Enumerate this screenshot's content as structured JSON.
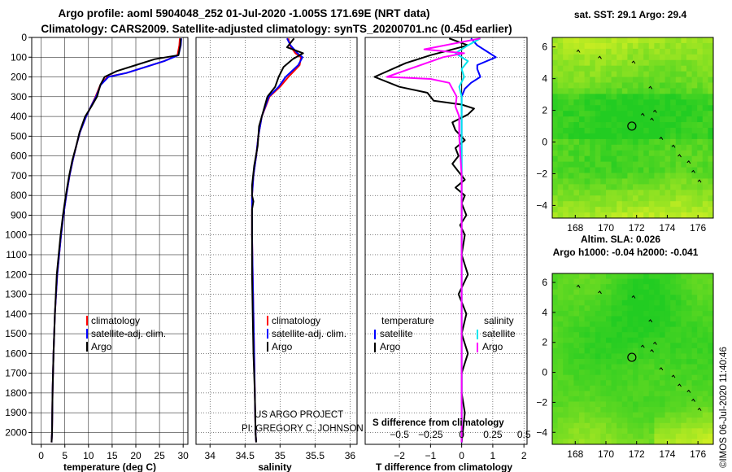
{
  "header": {
    "title_line1": "Argo profile: aoml 5904048_252 01-Jul-2020 -1.005S 171.69E (NRT data)",
    "title_line2": "Climatology: CARS2009. Satellite-adjusted climatology: synTS_20200701.nc (0.45d earlier)"
  },
  "footer": {
    "project_line1": "US ARGO PROJECT",
    "project_line2": "PI: GREGORY C. JOHNSON",
    "credit": "©IMOS 06-Jul-2020 11:40:46"
  },
  "colors": {
    "climatology": "#ff0000",
    "satellite": "#0000ff",
    "argo": "#000000",
    "sal_satellite": "#00e5ee",
    "sal_argo": "#ff00ff",
    "map_green": "#22cc22",
    "map_yellow": "#ccee22"
  },
  "chart_data": [
    {
      "id": "temperature",
      "type": "line",
      "xlabel": "temperature (deg C)",
      "ylabel": "",
      "xlim": [
        -2,
        31
      ],
      "ylim": [
        2060,
        0
      ],
      "xticks": [
        0,
        5,
        10,
        15,
        20,
        25,
        30
      ],
      "yticks": [
        0,
        100,
        200,
        300,
        400,
        500,
        600,
        700,
        800,
        900,
        1000,
        1100,
        1200,
        1300,
        1400,
        1500,
        1600,
        1700,
        1800,
        1900,
        2000
      ],
      "legend": {
        "position": "lower-center",
        "entries": [
          "climatology",
          "satellite-adj. clim.",
          "Argo"
        ]
      },
      "series": [
        {
          "name": "climatology",
          "color": "#ff0000",
          "x": [
            29.3,
            29.2,
            28.8,
            26,
            22,
            18,
            14,
            12.5,
            11.5,
            10.5,
            9.5,
            8.2,
            7.4,
            6.7,
            6.0,
            5.3,
            4.7,
            4.2,
            3.4,
            2.9,
            2.6,
            2.4,
            2.3,
            2.2
          ],
          "y": [
            5,
            40,
            90,
            120,
            150,
            180,
            200,
            240,
            300,
            350,
            400,
            480,
            550,
            620,
            700,
            800,
            900,
            1000,
            1200,
            1400,
            1600,
            1800,
            2000,
            2050
          ]
        },
        {
          "name": "satellite-adj. clim.",
          "color": "#0000ff",
          "x": [
            29.6,
            29.5,
            29.0,
            26,
            22,
            18,
            14.2,
            12.6,
            11.6,
            10.5,
            9.5,
            8.2,
            7.4,
            6.7,
            6.0,
            5.3,
            4.7,
            4.2,
            3.4,
            2.9,
            2.6,
            2.4,
            2.3,
            2.2
          ],
          "y": [
            5,
            40,
            90,
            120,
            150,
            180,
            200,
            240,
            300,
            350,
            400,
            480,
            550,
            620,
            700,
            800,
            900,
            1000,
            1200,
            1400,
            1600,
            1800,
            2000,
            2050
          ]
        },
        {
          "name": "Argo",
          "color": "#000000",
          "x": [
            29.5,
            29.4,
            29.0,
            24,
            20,
            16,
            13.4,
            12.5,
            11.8,
            10.6,
            9.3,
            8.1,
            7.4,
            6.6,
            5.9,
            5.2,
            4.6,
            4.1,
            3.3,
            2.9,
            2.6,
            2.4,
            2.3,
            2.2
          ],
          "y": [
            5,
            40,
            90,
            110,
            140,
            170,
            200,
            240,
            300,
            350,
            400,
            480,
            550,
            620,
            700,
            800,
            900,
            1000,
            1200,
            1400,
            1600,
            1800,
            2000,
            2050
          ]
        }
      ]
    },
    {
      "id": "salinity",
      "type": "line",
      "xlabel": "salinity",
      "ylabel": "",
      "xlim": [
        33.8,
        36.1
      ],
      "ylim": [
        2060,
        0
      ],
      "xticks": [
        34,
        34.5,
        35,
        35.5,
        36
      ],
      "legend": {
        "position": "lower-center",
        "entries": [
          "climatology",
          "satellite-adj. clim.",
          "Argo"
        ]
      },
      "series": [
        {
          "name": "climatology",
          "color": "#ff0000",
          "x": [
            35.12,
            35.14,
            35.22,
            35.3,
            35.28,
            35.12,
            35.0,
            34.85,
            34.74,
            34.69,
            34.66,
            34.62,
            34.6,
            34.6,
            34.6,
            34.61,
            34.62,
            34.63,
            34.64,
            34.65,
            34.66
          ],
          "y": [
            5,
            40,
            80,
            100,
            140,
            200,
            250,
            300,
            400,
            500,
            600,
            700,
            800,
            900,
            1000,
            1200,
            1400,
            1600,
            1800,
            2000,
            2050
          ]
        },
        {
          "name": "satellite-adj. clim.",
          "color": "#0000ff",
          "x": [
            35.1,
            35.15,
            35.25,
            35.32,
            35.26,
            35.08,
            34.98,
            34.84,
            34.74,
            34.69,
            34.66,
            34.62,
            34.6,
            34.6,
            34.6,
            34.61,
            34.62,
            34.63,
            34.64,
            34.65,
            34.66
          ],
          "y": [
            5,
            40,
            80,
            100,
            140,
            200,
            250,
            300,
            400,
            500,
            600,
            700,
            800,
            900,
            1000,
            1200,
            1400,
            1600,
            1800,
            2000,
            2050
          ]
        },
        {
          "name": "Argo",
          "color": "#000000",
          "x": [
            35.2,
            35.1,
            35.33,
            35.18,
            35.05,
            34.98,
            34.93,
            34.82,
            34.74,
            34.7,
            34.68,
            34.63,
            34.6,
            34.6,
            34.62,
            34.6,
            34.6,
            34.6,
            34.6,
            34.61,
            34.62,
            34.64,
            34.65,
            34.66
          ],
          "y": [
            5,
            50,
            80,
            110,
            150,
            200,
            250,
            300,
            400,
            450,
            550,
            650,
            750,
            800,
            830,
            870,
            900,
            1000,
            1200,
            1400,
            1600,
            1800,
            2000,
            2050
          ]
        }
      ]
    },
    {
      "id": "difference",
      "type": "line",
      "xlabel": "T difference from climatology",
      "xlabel_top": "S difference from climatology",
      "ylabel": "",
      "xlim": [
        -3.1,
        2.1
      ],
      "ylim": [
        2060,
        0
      ],
      "xticks": [
        -2,
        -1,
        0,
        1,
        2
      ],
      "sticks": [
        -0.5,
        -0.25,
        0,
        0.25,
        0.5
      ],
      "slim": [
        -0.775,
        0.525
      ],
      "legend": {
        "position": "lower-center",
        "group_labels": [
          "temperature",
          "salinity"
        ],
        "entries": [
          "satellite",
          "Argo",
          "satellite",
          "Argo"
        ]
      },
      "series": [
        {
          "name": "T satellite",
          "color": "#0000ff",
          "x": [
            0.3,
            0.5,
            0.8,
            1.1,
            0.5,
            0.5,
            0.6,
            0.3,
            0.1,
            0,
            0,
            0,
            0,
            0,
            0,
            0,
            0,
            0,
            0,
            0,
            0
          ],
          "y": [
            5,
            40,
            70,
            100,
            140,
            160,
            200,
            230,
            260,
            300,
            400,
            500,
            700,
            900,
            1100,
            1300,
            1500,
            1700,
            1900,
            2000,
            2050
          ]
        },
        {
          "name": "T Argo",
          "color": "#000000",
          "x": [
            -0.4,
            0.2,
            -1.0,
            -1.8,
            -2.8,
            -2.0,
            -1.1,
            -0.9,
            0,
            0.4,
            0.2,
            -0.3,
            -0.2,
            0.1,
            -0.2,
            -0.1,
            -0.3,
            -0.1,
            0.1,
            -0.2,
            0.1,
            0,
            0.15,
            -0.05,
            0.1,
            0,
            0.2,
            -0.1,
            0.15,
            0,
            0.2,
            0,
            0,
            0.1,
            0
          ],
          "y": [
            5,
            40,
            90,
            130,
            200,
            250,
            280,
            320,
            340,
            360,
            390,
            430,
            470,
            520,
            560,
            600,
            640,
            680,
            720,
            760,
            800,
            840,
            900,
            950,
            1000,
            1100,
            1200,
            1300,
            1400,
            1500,
            1600,
            1700,
            1800,
            1900,
            2050
          ]
        },
        {
          "name": "S satellite",
          "color": "#00e5ee",
          "x": [
            0.15,
            0.05,
            -0.05,
            0.05,
            0.0,
            0.02,
            -0.02,
            0,
            0,
            0,
            0,
            0,
            0,
            0,
            0,
            0,
            0,
            0,
            0,
            0
          ],
          "y": [
            5,
            40,
            80,
            120,
            160,
            200,
            250,
            300,
            400,
            500,
            700,
            900,
            1100,
            1300,
            1500,
            1600,
            1700,
            1800,
            2000,
            2050
          ]
        },
        {
          "name": "S Argo",
          "color": "#ff00ff",
          "x": [
            0.15,
            -0.3,
            0.02,
            -0.15,
            -0.6,
            -0.25,
            -0.1,
            -0.04,
            -0.05,
            -0.02,
            -0.02,
            0,
            0,
            0,
            0,
            0,
            0,
            0,
            0
          ],
          "y": [
            5,
            60,
            80,
            100,
            200,
            210,
            230,
            300,
            350,
            400,
            500,
            700,
            900,
            1100,
            1300,
            1500,
            1700,
            1900,
            2050
          ]
        }
      ]
    },
    {
      "id": "sst-map",
      "type": "heatmap",
      "title": "sat. SST: 29.1 Argo: 29.4",
      "xlim": [
        166.5,
        177
      ],
      "ylim": [
        -4.8,
        6.6
      ],
      "xticks": [
        168,
        170,
        172,
        174,
        176
      ],
      "yticks": [
        -4,
        -2,
        0,
        2,
        4,
        6
      ],
      "marker": {
        "lon": 171.69,
        "lat": 1.005
      }
    },
    {
      "id": "sla-map",
      "type": "heatmap",
      "title": "Altim. SLA: 0.026",
      "subtitle": "Argo h1000: -0.04 h2000: -0.041",
      "xlim": [
        166.5,
        177
      ],
      "ylim": [
        -4.8,
        6.6
      ],
      "xticks": [
        168,
        170,
        172,
        174,
        176
      ],
      "yticks": [
        -4,
        -2,
        0,
        2,
        4,
        6
      ],
      "marker": {
        "lon": 171.69,
        "lat": 1.005
      }
    }
  ]
}
